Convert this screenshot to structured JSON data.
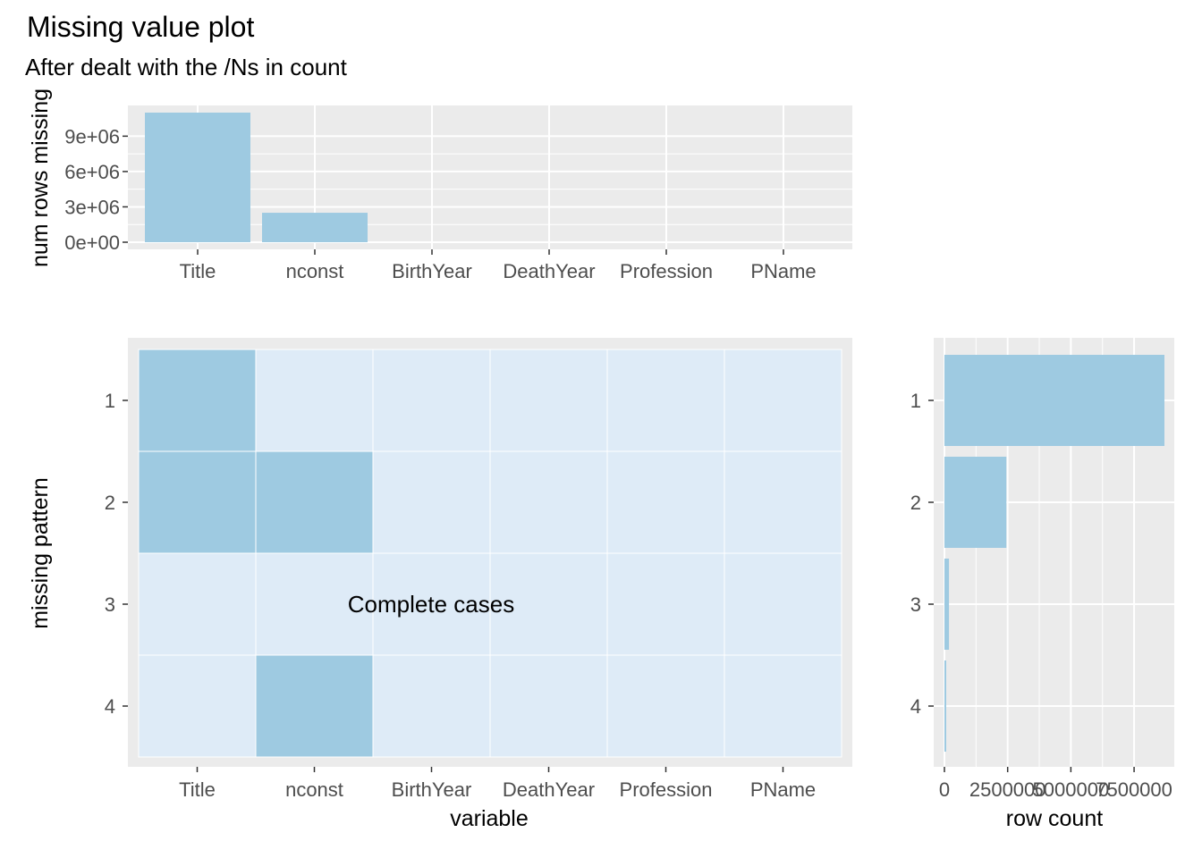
{
  "title": "Missing value plot",
  "subtitle": "After dealt with the /Ns in count",
  "colors": {
    "panel": "#ebebeb",
    "grid": "#ffffff",
    "missing": "#9ecae1",
    "present": "#deebf7",
    "tick_text": "#4d4d4d"
  },
  "chart_data": [
    {
      "type": "bar",
      "name": "top",
      "categories": [
        "Title",
        "nconst",
        "BirthYear",
        "DeathYear",
        "Profession",
        "PName"
      ],
      "values": [
        11000000,
        2500000,
        0,
        0,
        0,
        0
      ],
      "ylabel": "num rows missing",
      "ylim": [
        0,
        11000000
      ],
      "yticks": [
        0,
        3000000,
        6000000,
        9000000
      ],
      "ytick_labels": [
        "0e+00",
        "3e+06",
        "6e+06",
        "9e+06"
      ],
      "grid": true
    },
    {
      "type": "heatmap",
      "name": "patterns",
      "x": [
        "Title",
        "nconst",
        "BirthYear",
        "DeathYear",
        "Profession",
        "PName"
      ],
      "y": [
        "1",
        "2",
        "3",
        "4"
      ],
      "missing": [
        [
          1,
          0,
          0,
          0,
          0,
          0
        ],
        [
          1,
          1,
          0,
          0,
          0,
          0
        ],
        [
          0,
          0,
          0,
          0,
          0,
          0
        ],
        [
          0,
          1,
          0,
          0,
          0,
          0
        ]
      ],
      "xlabel": "variable",
      "ylabel": "missing pattern",
      "annotation": {
        "text": "Complete cases",
        "row": 3
      }
    },
    {
      "type": "bar",
      "name": "right",
      "orientation": "horizontal",
      "categories": [
        "1",
        "2",
        "3",
        "4"
      ],
      "values": [
        8700000,
        2450000,
        180000,
        40000
      ],
      "xlabel": "row count",
      "xlim": [
        0,
        8700000
      ],
      "xticks": [
        0,
        2500000,
        5000000,
        7500000
      ],
      "xtick_labels": [
        "0",
        "2500000",
        "5000000",
        "7500000"
      ],
      "grid": true
    }
  ]
}
